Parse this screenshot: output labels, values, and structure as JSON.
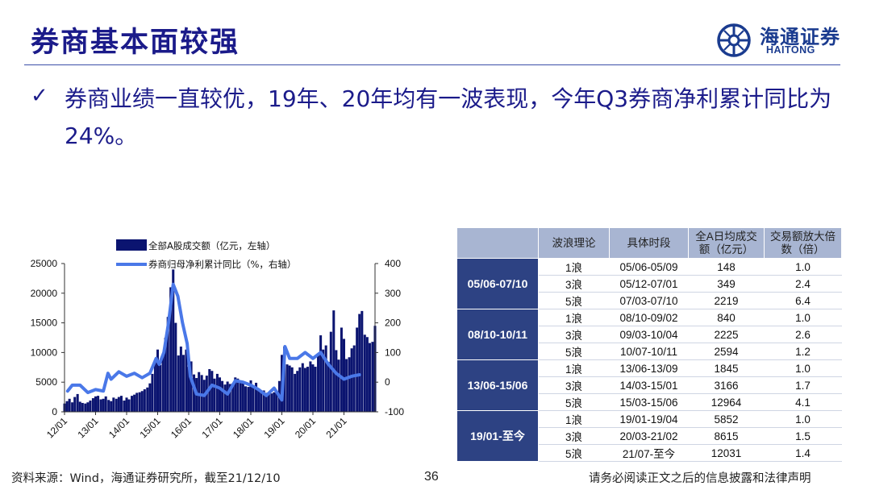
{
  "slide": {
    "title": "券商基本面较强",
    "bullet": "券商业绩一直较优，19年、20年均有一波表现，今年Q3券商净利累计同比为24%。"
  },
  "logo": {
    "name_cn": "海通证券",
    "name_en": "HAITONG"
  },
  "chart_data": {
    "type": "bar+line",
    "categories": [
      "12/01",
      "13/01",
      "14/01",
      "15/01",
      "16/01",
      "17/01",
      "18/01",
      "19/01",
      "20/01",
      "21/01"
    ],
    "series": [
      {
        "name": "全部A股成交额（亿元，左轴）",
        "axis": "left",
        "kind": "bar",
        "color": "#0b1470",
        "x": [
          0,
          0.08,
          0.16,
          0.25,
          0.33,
          0.42,
          0.5,
          0.58,
          0.67,
          0.75,
          0.83,
          0.92,
          1,
          1.08,
          1.17,
          1.25,
          1.33,
          1.42,
          1.5,
          1.58,
          1.67,
          1.75,
          1.83,
          1.92,
          2,
          2.08,
          2.17,
          2.25,
          2.33,
          2.42,
          2.5,
          2.58,
          2.67,
          2.75,
          2.83,
          2.92,
          3,
          3.08,
          3.17,
          3.25,
          3.33,
          3.42,
          3.5,
          3.58,
          3.67,
          3.75,
          3.83,
          3.92,
          4,
          4.08,
          4.17,
          4.25,
          4.33,
          4.42,
          4.5,
          4.58,
          4.67,
          4.75,
          4.83,
          4.92,
          5,
          5.08,
          5.17,
          5.25,
          5.33,
          5.42,
          5.5,
          5.58,
          5.67,
          5.75,
          5.83,
          5.92,
          6,
          6.08,
          6.17,
          6.25,
          6.33,
          6.42,
          6.5,
          6.58,
          6.67,
          6.75,
          6.83,
          6.92,
          7,
          7.08,
          7.17,
          7.25,
          7.33,
          7.42,
          7.5,
          7.58,
          7.67,
          7.75,
          7.83,
          7.92,
          8,
          8.08,
          8.17,
          8.25,
          8.33,
          8.42,
          8.5,
          8.58,
          8.67,
          8.75,
          8.83,
          8.92,
          9,
          9.08,
          9.17,
          9.25,
          9.33,
          9.42,
          9.5,
          9.58,
          9.67,
          9.75,
          9.83,
          9.92,
          10
        ],
        "values": [
          1400,
          1800,
          2200,
          1600,
          2500,
          3000,
          1700,
          1500,
          1400,
          1600,
          1900,
          2300,
          2600,
          2700,
          2100,
          2200,
          2600,
          2000,
          1800,
          2400,
          2200,
          2500,
          2700,
          1900,
          2400,
          2100,
          2700,
          2900,
          3200,
          3300,
          3500,
          3800,
          4100,
          4800,
          6400,
          8400,
          10500,
          7900,
          9600,
          12500,
          16000,
          21000,
          24000,
          15000,
          9500,
          11000,
          9600,
          10500,
          7600,
          8500,
          6300,
          5700,
          6700,
          6200,
          5400,
          6100,
          7200,
          6900,
          5600,
          6400,
          5800,
          5200,
          4600,
          5100,
          4700,
          4800,
          5800,
          5600,
          5200,
          4800,
          4300,
          4200,
          5300,
          4400,
          4900,
          3900,
          3500,
          3600,
          3200,
          3000,
          3100,
          3300,
          3400,
          5200,
          9600,
          11000,
          8000,
          7800,
          7500,
          6400,
          6900,
          7500,
          8200,
          7400,
          7600,
          8500,
          8000,
          7600,
          9700,
          12900,
          10500,
          11200,
          8400,
          13500,
          17100,
          10400,
          8800,
          14200,
          12300,
          8900,
          9200,
          10700,
          11200,
          14200,
          16500,
          17000,
          13000,
          12600,
          11600,
          11800,
          14500
        ]
      },
      {
        "name": "券商归母净利累计同比（%，右轴）",
        "axis": "right",
        "kind": "line",
        "color": "#4a78e8",
        "x": [
          0.1,
          0.25,
          0.5,
          0.75,
          1,
          1.25,
          1.4,
          1.5,
          1.75,
          2,
          2.25,
          2.5,
          2.75,
          2.95,
          3.05,
          3.2,
          3.35,
          3.5,
          3.65,
          3.8,
          3.95,
          4.05,
          4.25,
          4.5,
          4.75,
          5,
          5.25,
          5.5,
          5.75,
          6,
          6.25,
          6.5,
          6.75,
          7,
          7.1,
          7.25,
          7.5,
          7.75,
          8,
          8.25,
          8.5,
          8.75,
          9,
          9.25,
          9.5
        ],
        "values": [
          -30,
          -10,
          -10,
          -35,
          -25,
          -30,
          30,
          10,
          35,
          20,
          30,
          15,
          30,
          80,
          60,
          100,
          200,
          330,
          290,
          200,
          130,
          20,
          -40,
          -45,
          -10,
          -20,
          -40,
          5,
          0,
          -10,
          -25,
          -45,
          -20,
          -60,
          120,
          80,
          80,
          100,
          80,
          100,
          60,
          30,
          10,
          20,
          25
        ]
      }
    ],
    "y_left": {
      "min": 0,
      "max": 25000,
      "ticks": [
        0,
        5000,
        10000,
        15000,
        20000,
        25000
      ]
    },
    "y_right": {
      "min": -100,
      "max": 400,
      "ticks": [
        -100,
        0,
        100,
        200,
        300,
        400
      ]
    },
    "legend": "top-left"
  },
  "table": {
    "headers": [
      "波浪理论",
      "具体时段",
      "全A日均成交额（亿元）",
      "交易额放大倍数（倍）"
    ],
    "groups": [
      {
        "period": "05/06-07/10",
        "rows": [
          {
            "wave": "1浪",
            "range": "05/06-05/09",
            "turnover": "148",
            "multiple": "1.0"
          },
          {
            "wave": "3浪",
            "range": "05/12-07/01",
            "turnover": "349",
            "multiple": "2.4"
          },
          {
            "wave": "5浪",
            "range": "07/03-07/10",
            "turnover": "2219",
            "multiple": "6.4"
          }
        ]
      },
      {
        "period": "08/10-10/11",
        "rows": [
          {
            "wave": "1浪",
            "range": "08/10-09/02",
            "turnover": "840",
            "multiple": "1.0"
          },
          {
            "wave": "3浪",
            "range": "09/03-10/04",
            "turnover": "2225",
            "multiple": "2.6"
          },
          {
            "wave": "5浪",
            "range": "10/07-10/11",
            "turnover": "2594",
            "multiple": "1.2"
          }
        ]
      },
      {
        "period": "13/06-15/06",
        "rows": [
          {
            "wave": "1浪",
            "range": "13/06-13/09",
            "turnover": "1845",
            "multiple": "1.0"
          },
          {
            "wave": "3浪",
            "range": "14/03-15/01",
            "turnover": "3166",
            "multiple": "1.7"
          },
          {
            "wave": "5浪",
            "range": "15/03-15/06",
            "turnover": "12964",
            "multiple": "4.1"
          }
        ]
      },
      {
        "period": "19/01-至今",
        "rows": [
          {
            "wave": "1浪",
            "range": "19/01-19/04",
            "turnover": "5852",
            "multiple": "1.0"
          },
          {
            "wave": "3浪",
            "range": "20/03-21/02",
            "turnover": "8615",
            "multiple": "1.5"
          },
          {
            "wave": "5浪",
            "range": "21/07-至今",
            "turnover": "12031",
            "multiple": "1.4"
          }
        ]
      }
    ]
  },
  "footer": {
    "source": "资料来源：Wind，海通证券研究所，截至21/12/10",
    "page": "36",
    "disclaimer": "请务必阅读正文之后的信息披露和法律声明"
  },
  "colors": {
    "brand": "#1b1b8a",
    "table_header": "#a8b5d2",
    "table_period": "#2d4283",
    "rule": "#3b4fa8"
  }
}
